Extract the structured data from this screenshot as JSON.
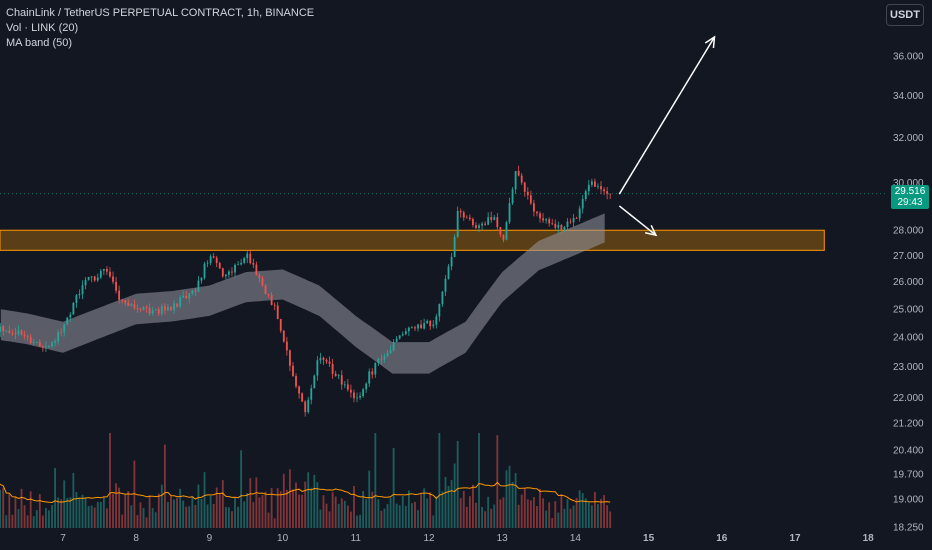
{
  "legend": {
    "title": "ChainLink / TetherUS PERPETUAL CONTRACT, 1h, BINANCE",
    "vol": "Vol · LINK (20)",
    "ma_band": "MA band (50)"
  },
  "currency_button": "USDT",
  "last_price": "29.516",
  "countdown": "29:43",
  "colors": {
    "background": "#131722",
    "up": "#26a69a",
    "down": "#ef5350",
    "zone_fill": "#ff9800",
    "zone_border": "#ff9800",
    "ma_band": "#9598a1",
    "vol_ma": "#ff9800",
    "price_tag": "#089981"
  },
  "chart_data": {
    "type": "candlestick",
    "price_axis_ticks": [
      "36.000",
      "34.000",
      "32.000",
      "30.000",
      "28.000",
      "27.000",
      "26.000",
      "25.000",
      "24.000",
      "23.000",
      "22.000",
      "21.200",
      "20.400",
      "19.700",
      "19.000",
      "18.250"
    ],
    "time_axis_ticks": [
      "7",
      "8",
      "9",
      "10",
      "11",
      "12",
      "13",
      "14",
      "15",
      "16",
      "17",
      "18"
    ],
    "ylim": [
      18.25,
      38.5
    ],
    "axis_scale": "log",
    "support_zone": [
      27.2,
      28.0
    ],
    "last_price": 29.516,
    "path_points_x": [
      6.2,
      6.5,
      6.8,
      7.0,
      7.3,
      7.6,
      7.8,
      8.0,
      8.2,
      8.5,
      8.8,
      9.0,
      9.2,
      9.5,
      9.7,
      9.9,
      10.1,
      10.3,
      10.5,
      10.7,
      10.9,
      11.0,
      11.2,
      11.4,
      11.6,
      11.9,
      12.1,
      12.3,
      12.4,
      12.5,
      12.7,
      12.9,
      13.0,
      13.1,
      13.2,
      13.4,
      13.6,
      13.8,
      14.0,
      14.2,
      14.4
    ],
    "path_points_close": [
      24.3,
      24.0,
      23.6,
      24.4,
      26.0,
      26.4,
      25.2,
      25.0,
      24.9,
      25.1,
      25.6,
      27.0,
      26.2,
      27.0,
      26.0,
      25.0,
      23.0,
      21.5,
      23.4,
      22.8,
      22.2,
      21.8,
      22.8,
      23.4,
      24.1,
      24.4,
      24.6,
      26.8,
      29.0,
      28.5,
      28.1,
      28.6,
      27.4,
      29.0,
      30.6,
      29.0,
      28.4,
      28.0,
      28.5,
      30.2,
      29.516
    ],
    "ma_band_x": [
      6.0,
      6.5,
      7.0,
      7.5,
      8.0,
      8.5,
      9.0,
      9.5,
      10.0,
      10.5,
      11.0,
      11.5,
      12.0,
      12.5,
      13.0,
      13.5,
      14.0,
      14.4
    ],
    "ma_band_mid": [
      24.5,
      24.3,
      24.0,
      24.5,
      25.0,
      25.1,
      25.3,
      25.8,
      25.9,
      25.3,
      24.2,
      23.3,
      23.3,
      24.0,
      25.8,
      27.0,
      27.6,
      28.1
    ],
    "vol_ma_level": "approx. constant",
    "projections": [
      {
        "label": "bullish arrow",
        "from": [
          14.6,
          29.5
        ],
        "to": [
          15.9,
          37.0
        ]
      },
      {
        "label": "bearish arrow",
        "from": [
          14.6,
          29.0
        ],
        "to": [
          15.1,
          27.8
        ]
      }
    ]
  }
}
